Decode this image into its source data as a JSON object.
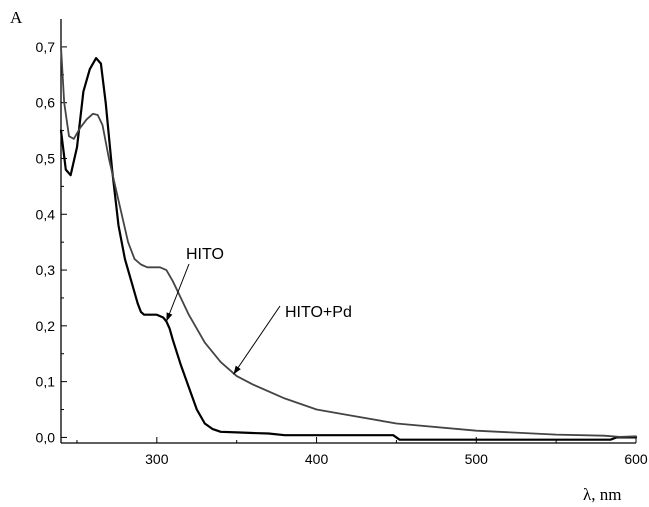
{
  "chart_data": {
    "type": "line",
    "xlabel": "λ, nm",
    "ylabel": "A",
    "xlim": [
      240,
      600
    ],
    "ylim": [
      -0.01,
      0.75
    ],
    "x_ticks": [
      300,
      400,
      500,
      600
    ],
    "x_tick_labels": [
      "300",
      "400",
      "500",
      "600"
    ],
    "y_ticks": [
      0.0,
      0.1,
      0.2,
      0.3,
      0.4,
      0.5,
      0.6,
      0.7
    ],
    "y_tick_labels": [
      "0,0",
      "0,1",
      "0,2",
      "0,3",
      "0,4",
      "0,5",
      "0,6",
      "0,7"
    ],
    "grid": false,
    "series": [
      {
        "name": "HITO",
        "color": "#000000",
        "x": [
          240,
          243,
          246,
          250,
          254,
          258,
          262,
          265,
          268,
          272,
          276,
          280,
          284,
          288,
          290,
          292,
          294,
          296,
          300,
          304,
          306,
          308,
          310,
          315,
          320,
          325,
          330,
          335,
          340,
          350,
          360,
          370,
          380,
          400,
          420,
          448,
          452,
          500,
          550,
          584,
          588,
          600
        ],
        "y": [
          0.55,
          0.48,
          0.47,
          0.52,
          0.62,
          0.66,
          0.68,
          0.67,
          0.6,
          0.48,
          0.38,
          0.32,
          0.28,
          0.24,
          0.225,
          0.22,
          0.22,
          0.22,
          0.22,
          0.215,
          0.208,
          0.195,
          0.175,
          0.13,
          0.09,
          0.05,
          0.025,
          0.015,
          0.01,
          0.009,
          0.008,
          0.007,
          0.004,
          0.004,
          0.004,
          0.004,
          -0.004,
          -0.004,
          -0.004,
          -0.004,
          0.0,
          0.0
        ]
      },
      {
        "name": "HITO+Pd",
        "color": "#444444",
        "x": [
          240,
          242,
          245,
          248,
          252,
          256,
          260,
          263,
          266,
          270,
          274,
          278,
          282,
          286,
          290,
          294,
          298,
          302,
          306,
          310,
          315,
          320,
          330,
          340,
          350,
          360,
          380,
          400,
          420,
          450,
          500,
          550,
          580,
          590,
          600
        ],
        "y": [
          0.7,
          0.6,
          0.54,
          0.535,
          0.555,
          0.57,
          0.58,
          0.578,
          0.56,
          0.5,
          0.45,
          0.4,
          0.35,
          0.32,
          0.31,
          0.305,
          0.305,
          0.305,
          0.3,
          0.28,
          0.25,
          0.22,
          0.17,
          0.135,
          0.11,
          0.095,
          0.07,
          0.05,
          0.04,
          0.025,
          0.012,
          0.005,
          0.003,
          0.001,
          0.002
        ]
      }
    ],
    "annotations": [
      {
        "text": "HITO",
        "series": "HITO",
        "target_x": 306,
        "target_y": 0.208
      },
      {
        "text": "HITO+Pd",
        "series": "HITO+Pd",
        "target_x": 348,
        "target_y": 0.113
      }
    ]
  }
}
